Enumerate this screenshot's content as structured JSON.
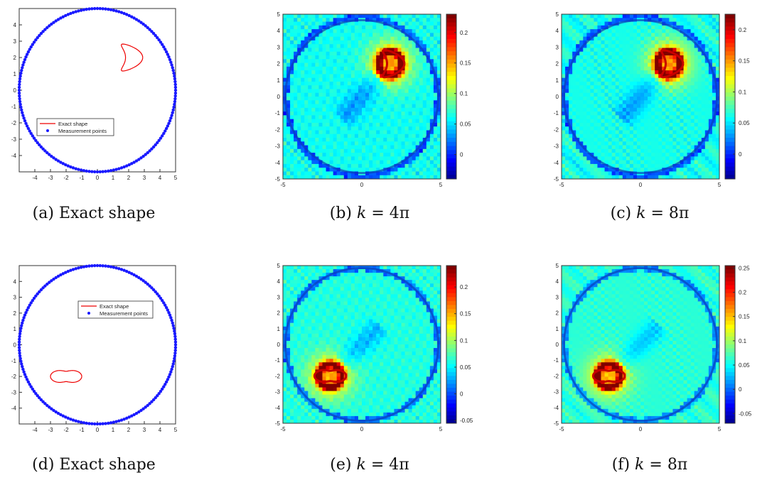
{
  "captions": [
    {
      "label": "(a)",
      "text": "Exact shape"
    },
    {
      "label": "(b)",
      "k_var": "k",
      "k_eq": "=",
      "k_val": "4π"
    },
    {
      "label": "(c)",
      "k_var": "k",
      "k_eq": "=",
      "k_val": "8π"
    },
    {
      "label": "(d)",
      "text": "Exact shape"
    },
    {
      "label": "(e)",
      "k_var": "k",
      "k_eq": "=",
      "k_val": "4π"
    },
    {
      "label": "(f)",
      "k_var": "k",
      "k_eq": "=",
      "k_val": "8π"
    }
  ],
  "legend": {
    "exact": "Exact shape",
    "measurement": "Measurement points"
  },
  "colors": {
    "exact_shape": "#ee0000",
    "measurement_points": "#1a1aff",
    "field_background": "#1f6ff0",
    "axes": "#333333"
  },
  "chart_data": [
    {
      "id": "a",
      "type": "scatter",
      "xlim": [
        -5,
        5
      ],
      "ylim": [
        -5,
        5
      ],
      "xticks": [
        "-4",
        "-3",
        "-2",
        "-1",
        "0",
        "1",
        "2",
        "3",
        "4",
        "5"
      ],
      "yticks": [
        "4",
        "3",
        "2",
        "1",
        "0",
        "-1",
        "-2",
        "-3",
        "-4"
      ],
      "measurement_circle": {
        "center": [
          0,
          0
        ],
        "radius": 5
      },
      "shape": "kite",
      "shape_center": [
        2.0,
        2.0
      ],
      "legend_position": "lower-left"
    },
    {
      "id": "b",
      "type": "heatmap",
      "xlim": [
        -5,
        5
      ],
      "ylim": [
        -5,
        5
      ],
      "xticks": [
        "-5",
        "0",
        "5"
      ],
      "yticks": [
        "5",
        "4",
        "3",
        "2",
        "1",
        "0",
        "-1",
        "-2",
        "-3",
        "-4",
        "-5"
      ],
      "colorbar": {
        "ticks": [
          "0.2",
          "0.15",
          "0.1",
          "0.05",
          "0"
        ],
        "tick_values": [
          0.2,
          0.15,
          0.1,
          0.05,
          0
        ],
        "range": [
          -0.04,
          0.23
        ]
      },
      "peak_center": [
        1.8,
        2.0
      ],
      "peak_shape": "kite"
    },
    {
      "id": "c",
      "type": "heatmap",
      "xlim": [
        -5,
        5
      ],
      "ylim": [
        -5,
        5
      ],
      "xticks": [
        "-5",
        "0",
        "5"
      ],
      "yticks": [
        "5",
        "4",
        "3",
        "2",
        "1",
        "0",
        "-1",
        "-2",
        "-3",
        "-4",
        "-5"
      ],
      "colorbar": {
        "ticks": [
          "0.2",
          "0.15",
          "0.1",
          "0.05",
          "0"
        ],
        "tick_values": [
          0.2,
          0.15,
          0.1,
          0.05,
          0
        ],
        "range": [
          -0.04,
          0.225
        ]
      },
      "peak_center": [
        1.8,
        2.0
      ],
      "peak_shape": "kite"
    },
    {
      "id": "d",
      "type": "scatter",
      "xlim": [
        -5,
        5
      ],
      "ylim": [
        -5,
        5
      ],
      "xticks": [
        "-4",
        "-3",
        "-2",
        "-1",
        "0",
        "1",
        "2",
        "3",
        "4",
        "5"
      ],
      "yticks": [
        "4",
        "3",
        "2",
        "1",
        "0",
        "-1",
        "-2",
        "-3",
        "-4"
      ],
      "measurement_circle": {
        "center": [
          0,
          0
        ],
        "radius": 5
      },
      "shape": "peanut",
      "shape_center": [
        -2.0,
        -2.0
      ],
      "legend_position": "upper-right"
    },
    {
      "id": "e",
      "type": "heatmap",
      "xlim": [
        -5,
        5
      ],
      "ylim": [
        -5,
        5
      ],
      "xticks": [
        "-5",
        "0",
        "5"
      ],
      "yticks": [
        "5",
        "4",
        "3",
        "2",
        "1",
        "0",
        "-1",
        "-2",
        "-3",
        "-4",
        "-5"
      ],
      "colorbar": {
        "ticks": [
          "0.2",
          "0.15",
          "0.1",
          "0.05",
          "0",
          "-0.05"
        ],
        "tick_values": [
          0.2,
          0.15,
          0.1,
          0.05,
          0,
          -0.05
        ],
        "range": [
          -0.055,
          0.24
        ]
      },
      "peak_center": [
        -2.0,
        -2.0
      ],
      "peak_shape": "peanut"
    },
    {
      "id": "f",
      "type": "heatmap",
      "xlim": [
        -5,
        5
      ],
      "ylim": [
        -5,
        5
      ],
      "xticks": [
        "-5",
        "0",
        "5"
      ],
      "yticks": [
        "5",
        "4",
        "3",
        "2",
        "1",
        "0",
        "-1",
        "-2",
        "-3",
        "-4",
        "-5"
      ],
      "colorbar": {
        "ticks": [
          "0.25",
          "0.2",
          "0.15",
          "0.1",
          "0.05",
          "0",
          "-0.05"
        ],
        "tick_values": [
          0.25,
          0.2,
          0.15,
          0.1,
          0.05,
          0,
          -0.05
        ],
        "range": [
          -0.07,
          0.255
        ]
      },
      "peak_center": [
        -2.0,
        -2.0
      ],
      "peak_shape": "peanut"
    }
  ]
}
